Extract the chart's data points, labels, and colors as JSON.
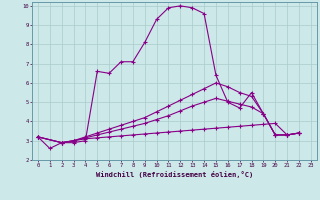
{
  "xlabel": "Windchill (Refroidissement éolien,°C)",
  "background_color": "#cce8e8",
  "grid_color": "#aacccc",
  "line_color": "#880088",
  "xlim": [
    -0.5,
    23.5
  ],
  "ylim": [
    2,
    10.2
  ],
  "xticks": [
    0,
    1,
    2,
    3,
    4,
    5,
    6,
    7,
    8,
    9,
    10,
    11,
    12,
    13,
    14,
    15,
    16,
    17,
    18,
    19,
    20,
    21,
    22,
    23
  ],
  "yticks": [
    2,
    3,
    4,
    5,
    6,
    7,
    8,
    9,
    10
  ],
  "series": {
    "line1": {
      "x": [
        0,
        1,
        2,
        3,
        4,
        5,
        6,
        7,
        8,
        9,
        10,
        11,
        12,
        13,
        14,
        15,
        16,
        17,
        18,
        19,
        20,
        21,
        22
      ],
      "y": [
        3.2,
        2.6,
        2.9,
        2.9,
        3.0,
        6.6,
        6.5,
        7.1,
        7.1,
        8.1,
        9.3,
        9.9,
        10.0,
        9.9,
        9.6,
        6.4,
        5.0,
        4.7,
        5.5,
        4.4,
        3.3,
        3.3,
        3.4
      ]
    },
    "line2": {
      "x": [
        0,
        2,
        3,
        4,
        5,
        6,
        7,
        8,
        9,
        10,
        11,
        12,
        13,
        14,
        15,
        16,
        17,
        18,
        19,
        20,
        21,
        22
      ],
      "y": [
        3.2,
        2.9,
        3.0,
        3.1,
        3.15,
        3.2,
        3.25,
        3.3,
        3.35,
        3.4,
        3.45,
        3.5,
        3.55,
        3.6,
        3.65,
        3.7,
        3.75,
        3.8,
        3.85,
        3.9,
        3.3,
        3.4
      ]
    },
    "line3": {
      "x": [
        0,
        2,
        3,
        4,
        5,
        6,
        7,
        8,
        9,
        10,
        11,
        12,
        13,
        14,
        15,
        16,
        17,
        18,
        19,
        20,
        21,
        22
      ],
      "y": [
        3.2,
        2.9,
        3.0,
        3.2,
        3.4,
        3.6,
        3.8,
        4.0,
        4.2,
        4.5,
        4.8,
        5.1,
        5.4,
        5.7,
        6.0,
        5.8,
        5.5,
        5.3,
        4.4,
        3.3,
        3.3,
        3.4
      ]
    },
    "line4": {
      "x": [
        0,
        2,
        3,
        4,
        5,
        6,
        7,
        8,
        9,
        10,
        11,
        12,
        13,
        14,
        15,
        16,
        17,
        18,
        19,
        20,
        21,
        22
      ],
      "y": [
        3.2,
        2.9,
        3.0,
        3.15,
        3.3,
        3.45,
        3.6,
        3.75,
        3.9,
        4.1,
        4.3,
        4.55,
        4.8,
        5.0,
        5.2,
        5.05,
        4.9,
        4.75,
        4.4,
        3.3,
        3.3,
        3.4
      ]
    }
  }
}
